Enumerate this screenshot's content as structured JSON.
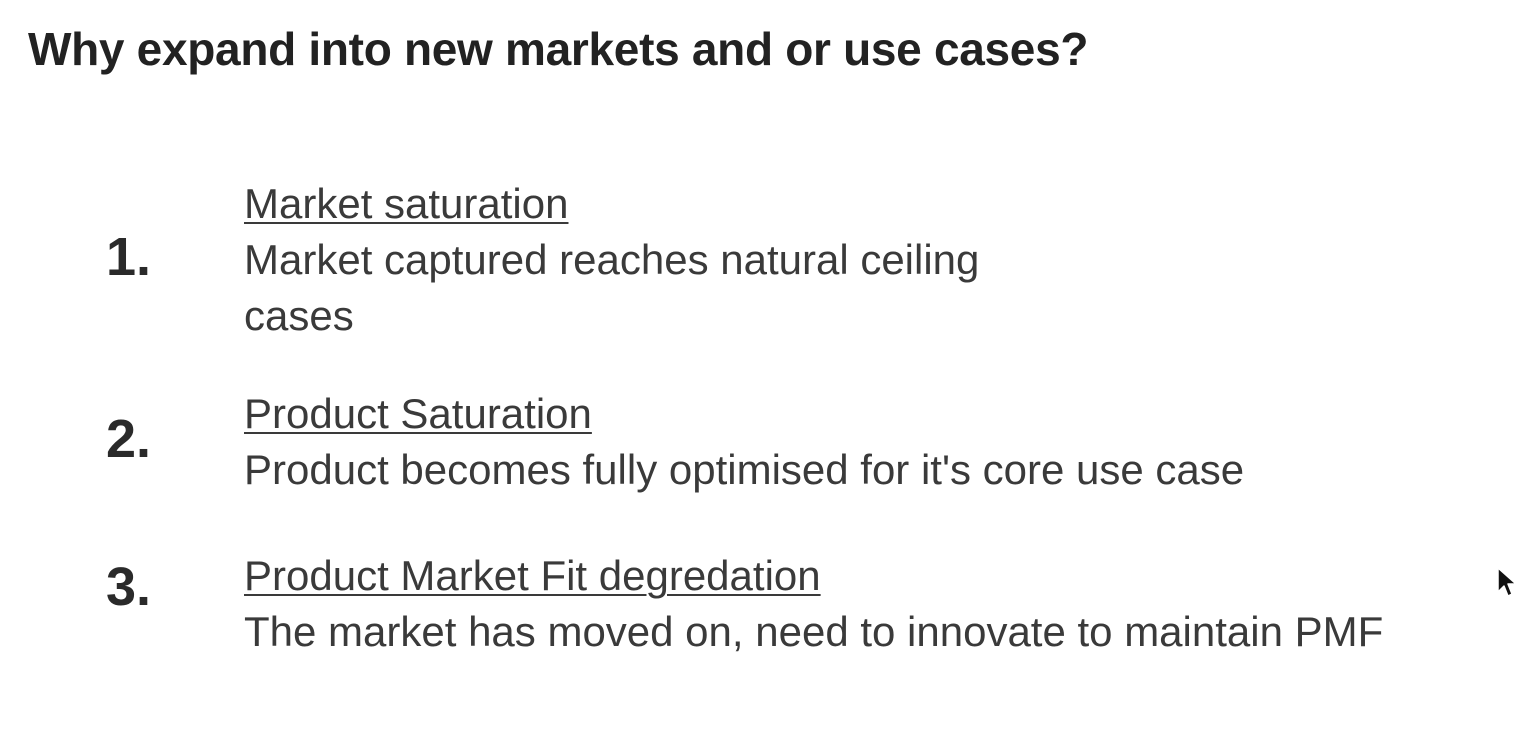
{
  "slide": {
    "title": "Why expand into new markets and or use cases?",
    "items": [
      {
        "number": "1.",
        "heading": "Market saturation",
        "lines": [
          "Market captured reaches natural ceiling",
          "cases"
        ]
      },
      {
        "number": "2.",
        "heading": "Product Saturation",
        "lines": [
          "Product becomes fully optimised for it's core use case"
        ]
      },
      {
        "number": "3.",
        "heading": "Product Market Fit degredation",
        "lines": [
          "The market has moved on, need to innovate to maintain PMF"
        ]
      }
    ]
  },
  "cursor": {
    "icon": "mouse-pointer-icon"
  },
  "colors": {
    "background": "#ffffff",
    "title_text": "#222222",
    "body_text": "#3a3a3a"
  }
}
